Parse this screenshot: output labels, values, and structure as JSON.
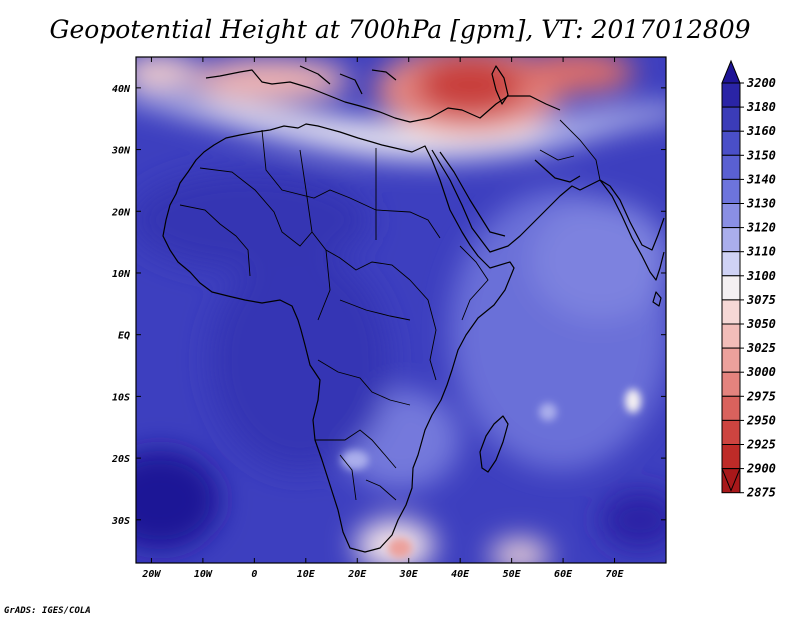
{
  "title": "Geopotential Height at 700hPa [gpm], VT: 2017012809",
  "credit": "GrADS: IGES/COLA",
  "map": {
    "lon_range": [
      -23,
      80
    ],
    "lat_range": [
      -37,
      45
    ],
    "lon_ticks": [
      {
        "value": -20,
        "label": "20W"
      },
      {
        "value": -10,
        "label": "10W"
      },
      {
        "value": 0,
        "label": "0"
      },
      {
        "value": 10,
        "label": "10E"
      },
      {
        "value": 20,
        "label": "20E"
      },
      {
        "value": 30,
        "label": "30E"
      },
      {
        "value": 40,
        "label": "40E"
      },
      {
        "value": 50,
        "label": "50E"
      },
      {
        "value": 60,
        "label": "60E"
      },
      {
        "value": 70,
        "label": "70E"
      }
    ],
    "lat_ticks": [
      {
        "value": 40,
        "label": "40N"
      },
      {
        "value": 30,
        "label": "30N"
      },
      {
        "value": 20,
        "label": "20N"
      },
      {
        "value": 10,
        "label": "10N"
      },
      {
        "value": 0,
        "label": "EQ"
      },
      {
        "value": -10,
        "label": "10S"
      },
      {
        "value": -20,
        "label": "20S"
      },
      {
        "value": -30,
        "label": "30S"
      }
    ]
  },
  "colorbar": {
    "levels": [
      3200,
      3180,
      3160,
      3150,
      3140,
      3130,
      3120,
      3110,
      3100,
      3075,
      3050,
      3025,
      3000,
      2975,
      2950,
      2925,
      2900,
      2875
    ],
    "colors": [
      "#1e1496",
      "#2a24a6",
      "#3b3cb8",
      "#4a4fc8",
      "#5a60d2",
      "#6d74dc",
      "#8a8fe4",
      "#aaaeec",
      "#cfd2f5",
      "#f4f0f2",
      "#f6d8d6",
      "#f2bdb9",
      "#eca19c",
      "#e4837e",
      "#d9625d",
      "#cd4440",
      "#be2b28",
      "#a8181a"
    ]
  },
  "colors": {
    "field_base": "#3d3fbf",
    "high_band": "#f4f0f2",
    "low_center": "#b8242a"
  }
}
